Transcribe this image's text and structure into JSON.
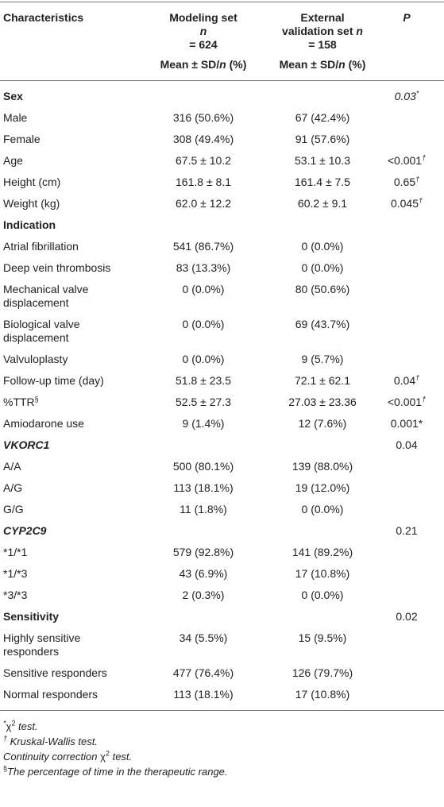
{
  "table": {
    "header": [
      [
        [
          {
            "t": "Characteristics",
            "b": true
          }
        ],
        [
          {
            "t": "Modeling set",
            "b": true
          },
          {
            "t": "n",
            "b": true,
            "i": true,
            "br": true
          },
          {
            "t": " = 624",
            "b": true
          }
        ],
        [
          {
            "t": "External validation set ",
            "b": true
          },
          {
            "t": "n",
            "b": true,
            "i": true
          },
          {
            "t": " = 158",
            "b": true
          }
        ],
        [
          {
            "t": "P",
            "b": true,
            "i": true
          }
        ]
      ],
      [
        [],
        [
          {
            "t": "Mean ± SD/",
            "b": true
          },
          {
            "t": "n",
            "b": true,
            "i": true
          },
          {
            "t": " (%)",
            "b": true
          }
        ],
        [
          {
            "t": "Mean ± SD/",
            "b": true
          },
          {
            "t": "n",
            "b": true,
            "i": true
          },
          {
            "t": " (%)",
            "b": true
          }
        ],
        []
      ]
    ],
    "rows": [
      [
        [
          {
            "t": "Sex",
            "b": true
          }
        ],
        [],
        [],
        [
          {
            "t": "0.03",
            "i": true
          },
          {
            "t": "*",
            "sup": true,
            "i": true
          }
        ]
      ],
      [
        [
          {
            "t": "Male"
          }
        ],
        [
          {
            "t": "316 (50.6%)"
          }
        ],
        [
          {
            "t": "67 (42.4%)"
          }
        ],
        []
      ],
      [
        [
          {
            "t": "Female"
          }
        ],
        [
          {
            "t": "308 (49.4%)"
          }
        ],
        [
          {
            "t": "91 (57.6%)"
          }
        ],
        []
      ],
      [
        [
          {
            "t": "Age"
          }
        ],
        [
          {
            "t": "67.5 ± 10.2"
          }
        ],
        [
          {
            "t": "53.1 ± 10.3"
          }
        ],
        [
          {
            "t": "<0.001"
          },
          {
            "t": "†",
            "sup": true,
            "i": true
          }
        ]
      ],
      [
        [
          {
            "t": "Height (cm)"
          }
        ],
        [
          {
            "t": "161.8 ± 8.1"
          }
        ],
        [
          {
            "t": "161.4 ± 7.5"
          }
        ],
        [
          {
            "t": "0.65"
          },
          {
            "t": "†",
            "sup": true,
            "i": true
          }
        ]
      ],
      [
        [
          {
            "t": "Weight (kg)"
          }
        ],
        [
          {
            "t": "62.0 ± 12.2"
          }
        ],
        [
          {
            "t": "60.2 ± 9.1"
          }
        ],
        [
          {
            "t": "0.045"
          },
          {
            "t": "†",
            "sup": true,
            "i": true
          }
        ]
      ],
      [
        [
          {
            "t": "Indication",
            "b": true
          }
        ],
        [],
        [],
        []
      ],
      [
        [
          {
            "t": "Atrial fibrillation"
          }
        ],
        [
          {
            "t": "541 (86.7%)"
          }
        ],
        [
          {
            "t": "0 (0.0%)"
          }
        ],
        []
      ],
      [
        [
          {
            "t": "Deep vein thrombosis"
          }
        ],
        [
          {
            "t": "83 (13.3%)"
          }
        ],
        [
          {
            "t": "0 (0.0%)"
          }
        ],
        []
      ],
      [
        [
          {
            "t": "Mechanical valve displacement"
          }
        ],
        [
          {
            "t": "0 (0.0%)"
          }
        ],
        [
          {
            "t": "80 (50.6%)"
          }
        ],
        []
      ],
      [
        [
          {
            "t": "Biological valve displacement"
          }
        ],
        [
          {
            "t": "0 (0.0%)"
          }
        ],
        [
          {
            "t": "69 (43.7%)"
          }
        ],
        []
      ],
      [
        [
          {
            "t": "Valvuloplasty"
          }
        ],
        [
          {
            "t": "0 (0.0%)"
          }
        ],
        [
          {
            "t": "9 (5.7%)"
          }
        ],
        []
      ],
      [
        [
          {
            "t": "Follow-up time (day)"
          }
        ],
        [
          {
            "t": "51.8 ± 23.5"
          }
        ],
        [
          {
            "t": "72.1 ± 62.1"
          }
        ],
        [
          {
            "t": "0.04"
          },
          {
            "t": "†",
            "sup": true,
            "i": true
          }
        ]
      ],
      [
        [
          {
            "t": "%TTR"
          },
          {
            "t": "§",
            "sup": true
          }
        ],
        [
          {
            "t": "52.5 ± 27.3"
          }
        ],
        [
          {
            "t": "27.03 ± 23.36"
          }
        ],
        [
          {
            "t": "<0.001"
          },
          {
            "t": "†",
            "sup": true,
            "i": true
          }
        ]
      ],
      [
        [
          {
            "t": "Amiodarone use"
          }
        ],
        [
          {
            "t": "9 (1.4%)"
          }
        ],
        [
          {
            "t": "12 (7.6%)"
          }
        ],
        [
          {
            "t": "0.001*"
          }
        ]
      ],
      [
        [
          {
            "t": "VKORC1",
            "b": true,
            "i": true
          }
        ],
        [],
        [],
        [
          {
            "t": "0.04"
          }
        ]
      ],
      [
        [
          {
            "t": "A/A"
          }
        ],
        [
          {
            "t": "500 (80.1%)"
          }
        ],
        [
          {
            "t": "139 (88.0%)"
          }
        ],
        []
      ],
      [
        [
          {
            "t": "A/G"
          }
        ],
        [
          {
            "t": "113 (18.1%)"
          }
        ],
        [
          {
            "t": "19 (12.0%)"
          }
        ],
        []
      ],
      [
        [
          {
            "t": "G/G"
          }
        ],
        [
          {
            "t": "11 (1.8%)"
          }
        ],
        [
          {
            "t": "0 (0.0%)"
          }
        ],
        []
      ],
      [
        [
          {
            "t": "CYP2C9",
            "b": true,
            "i": true
          }
        ],
        [],
        [],
        [
          {
            "t": "0.21"
          }
        ]
      ],
      [
        [
          {
            "t": "*1/*1"
          }
        ],
        [
          {
            "t": "579 (92.8%)"
          }
        ],
        [
          {
            "t": "141 (89.2%)"
          }
        ],
        []
      ],
      [
        [
          {
            "t": "*1/*3"
          }
        ],
        [
          {
            "t": "43 (6.9%)"
          }
        ],
        [
          {
            "t": "17 (10.8%)"
          }
        ],
        []
      ],
      [
        [
          {
            "t": "*3/*3"
          }
        ],
        [
          {
            "t": "2 (0.3%)"
          }
        ],
        [
          {
            "t": "0 (0.0%)"
          }
        ],
        []
      ],
      [
        [
          {
            "t": "Sensitivity",
            "b": true
          }
        ],
        [],
        [],
        [
          {
            "t": "0.02"
          }
        ]
      ],
      [
        [
          {
            "t": "Highly sensitive responders"
          }
        ],
        [
          {
            "t": "34 (5.5%)"
          }
        ],
        [
          {
            "t": "15 (9.5%)"
          }
        ],
        []
      ],
      [
        [
          {
            "t": "Sensitive responders"
          }
        ],
        [
          {
            "t": "477 (76.4%)"
          }
        ],
        [
          {
            "t": "126 (79.7%)"
          }
        ],
        []
      ],
      [
        [
          {
            "t": "Normal responders"
          }
        ],
        [
          {
            "t": "113 (18.1%)"
          }
        ],
        [
          {
            "t": "17 (10.8%)"
          }
        ],
        []
      ]
    ],
    "footnotes": [
      [
        {
          "t": "*",
          "sup": true,
          "i": true
        },
        {
          "t": "χ"
        },
        {
          "t": "2",
          "sup": true
        },
        {
          "t": " test.",
          "i": true
        }
      ],
      [
        {
          "t": "†",
          "sup": true,
          "i": true
        },
        {
          "t": " Kruskal-Wallis test.",
          "i": true
        }
      ],
      [
        {
          "t": "Continuity correction ",
          "i": true
        },
        {
          "t": "χ"
        },
        {
          "t": "2",
          "sup": true
        },
        {
          "t": " test.",
          "i": true
        }
      ],
      [
        {
          "t": "§",
          "sup": true
        },
        {
          "t": "The percentage of time in the therapeutic range.",
          "i": true
        }
      ]
    ]
  }
}
